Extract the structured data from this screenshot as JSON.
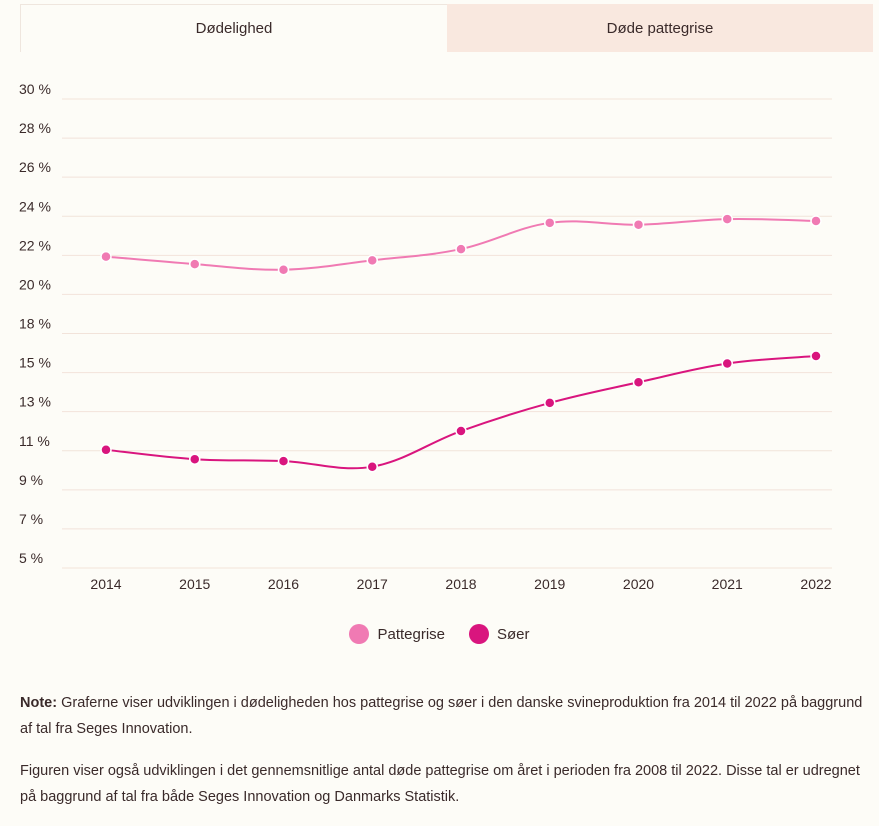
{
  "tabs": [
    {
      "label": "Dødelighed",
      "active": true
    },
    {
      "label": "Døde pattegrise",
      "active": false
    }
  ],
  "colors": {
    "pattegrise": "#f07ab3",
    "soer": "#d9157e",
    "grid": "#f2e3da",
    "tab_inactive_bg": "#f9e8df"
  },
  "chart_data": {
    "type": "line",
    "x": [
      "2014",
      "2015",
      "2016",
      "2017",
      "2018",
      "2019",
      "2020",
      "2021",
      "2022"
    ],
    "y_ticks": [
      "30 %",
      "28 %",
      "26 %",
      "24 %",
      "22 %",
      "20 %",
      "18 %",
      "15 %",
      "13 %",
      "11 %",
      "9 %",
      "7 %",
      "5 %"
    ],
    "ylim": [
      5,
      30
    ],
    "grid": true,
    "legend_position": "bottom",
    "series": [
      {
        "name": "Pattegrise",
        "values": [
          21.6,
          21.2,
          20.9,
          21.4,
          22.0,
          23.4,
          23.3,
          23.6,
          23.5
        ]
      },
      {
        "name": "Søer",
        "values": [
          11.3,
          10.8,
          10.7,
          10.4,
          12.3,
          13.8,
          14.9,
          15.9,
          16.3
        ]
      }
    ]
  },
  "notes": {
    "note_label": "Note:",
    "note_text": " Graferne viser udviklingen i dødeligheden hos pattegrise og søer i den danske svineproduktion fra 2014 til 2022 på baggrund af tal fra Seges Innovation.",
    "paragraph2": "Figuren viser også  udviklingen i det gennemsnitlige antal døde pattegrise om året i perioden fra 2008 til 2022. Disse tal er udregnet på baggrund af tal fra både Seges Innovation og Danmarks Statistik."
  }
}
